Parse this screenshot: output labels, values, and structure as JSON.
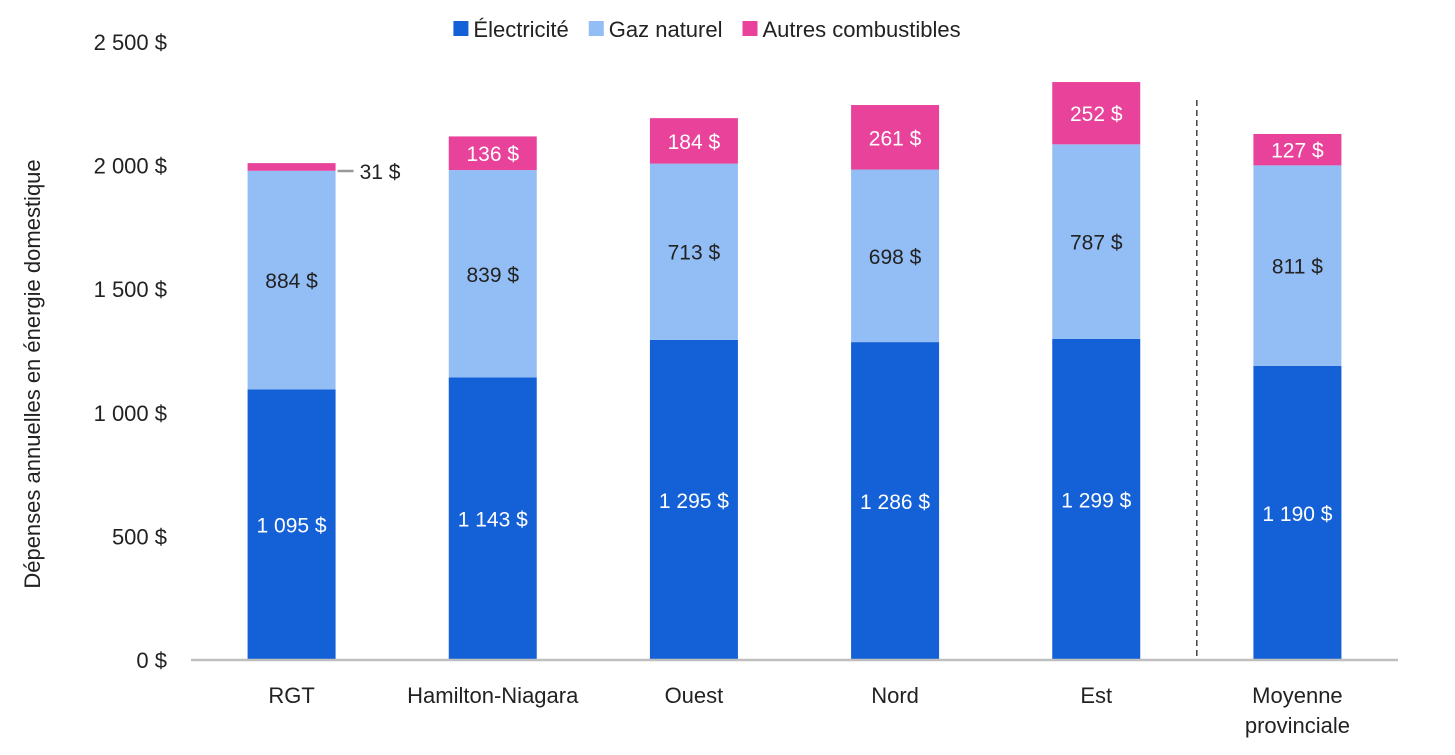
{
  "chart_data": {
    "type": "bar",
    "stacked": true,
    "ylabel": "Dépenses annuelles en énergie domestique",
    "ylim": [
      0,
      2500
    ],
    "yticks": [
      0,
      500,
      1000,
      1500,
      2000,
      2500
    ],
    "ytick_labels": [
      "0 $",
      "500 $",
      "1 000 $",
      "1 500 $",
      "2 000 $",
      "2 500 $"
    ],
    "grid": false,
    "legend_position": "top-center",
    "categories": [
      [
        "RGT"
      ],
      [
        "Hamilton-Niagara"
      ],
      [
        "Ouest"
      ],
      [
        "Nord"
      ],
      [
        "Est"
      ],
      [
        "Moyenne",
        "provinciale"
      ]
    ],
    "series": [
      {
        "name": "Électricité",
        "color": "#1460d6",
        "label_color": "#ffffff",
        "values": [
          1095,
          1143,
          1295,
          1286,
          1299,
          1190
        ],
        "labels": [
          "1 095 $",
          "1 143 $",
          "1 295 $",
          "1 286 $",
          "1 299 $",
          "1 190 $"
        ]
      },
      {
        "name": "Gaz naturel",
        "color": "#93bdf5",
        "label_color": "#222222",
        "values": [
          884,
          839,
          713,
          698,
          787,
          811
        ],
        "labels": [
          "884 $",
          "839 $",
          "713 $",
          "698 $",
          "787 $",
          "811 $"
        ]
      },
      {
        "name": "Autres combustibles",
        "color": "#e8429a",
        "label_color": "#ffffff",
        "values": [
          31,
          136,
          184,
          261,
          252,
          127
        ],
        "labels": [
          "31 $",
          "136 $",
          "184 $",
          "261 $",
          "252 $",
          "127 $"
        ]
      }
    ],
    "separator_before_category": 5,
    "axis_color": "#bfbfbf"
  }
}
